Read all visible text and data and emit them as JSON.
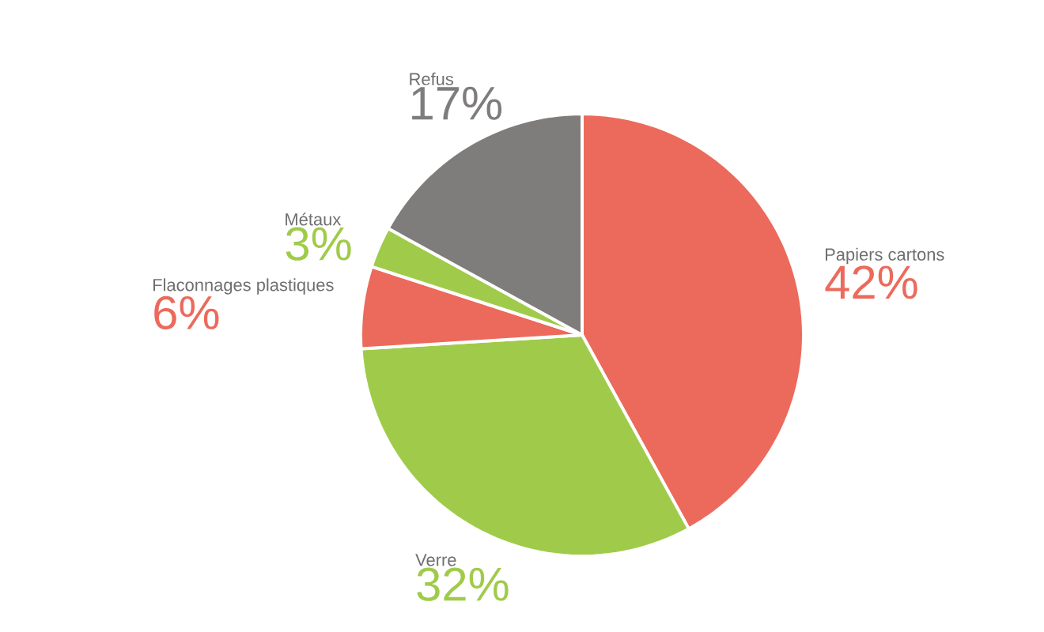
{
  "chart_data": {
    "type": "pie",
    "categories": [
      "Papiers cartons",
      "Verre",
      "Flaconnages plastiques",
      "Métaux",
      "Refus"
    ],
    "values": [
      42,
      32,
      6,
      3,
      17
    ],
    "value_labels": [
      "42%",
      "32%",
      "6%",
      "3%",
      "17%"
    ],
    "colors": [
      "#ec6a5c",
      "#a0cb4a",
      "#ec6a5c",
      "#a0cb4a",
      "#7f7c7c"
    ]
  }
}
